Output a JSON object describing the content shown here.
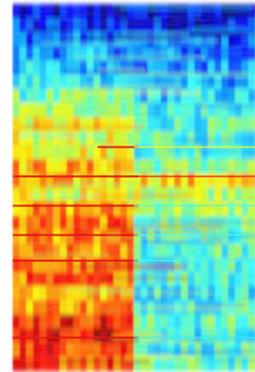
{
  "chart_data": {
    "type": "heatmap",
    "colormap": "jet",
    "colormap_stops": [
      "#00007f",
      "#0000ff",
      "#00a0ff",
      "#33ffff",
      "#a0ff60",
      "#ffff00",
      "#ff7f00",
      "#ff0000",
      "#7f0000"
    ],
    "frequency_bins_top_to_bottom": 26,
    "time_segments": 2,
    "segment_boundary_fraction": 0.5,
    "intensity_rows_top_to_bottom": [
      {
        "left": 0.08,
        "right": 0.08
      },
      {
        "left": 0.14,
        "right": 0.12
      },
      {
        "left": 0.22,
        "right": 0.18
      },
      {
        "left": 0.26,
        "right": 0.2
      },
      {
        "left": 0.3,
        "right": 0.24
      },
      {
        "left": 0.36,
        "right": 0.28
      },
      {
        "left": 0.44,
        "right": 0.32
      },
      {
        "left": 0.52,
        "right": 0.38
      },
      {
        "left": 0.6,
        "right": 0.4
      },
      {
        "left": 0.58,
        "right": 0.4
      },
      {
        "left": 0.62,
        "right": 0.42
      },
      {
        "left": 0.7,
        "right": 0.48
      },
      {
        "left": 0.68,
        "right": 0.66
      },
      {
        "left": 0.6,
        "right": 0.56
      },
      {
        "left": 0.72,
        "right": 0.52
      },
      {
        "left": 0.76,
        "right": 0.46
      },
      {
        "left": 0.74,
        "right": 0.4
      },
      {
        "left": 0.72,
        "right": 0.42
      },
      {
        "left": 0.74,
        "right": 0.38
      },
      {
        "left": 0.78,
        "right": 0.42
      },
      {
        "left": 0.7,
        "right": 0.36
      },
      {
        "left": 0.74,
        "right": 0.4
      },
      {
        "left": 0.86,
        "right": 0.42
      },
      {
        "left": 0.88,
        "right": 0.38
      },
      {
        "left": 0.84,
        "right": 0.4
      },
      {
        "left": 0.8,
        "right": 0.42
      }
    ],
    "hot_bands": [
      {
        "row_fraction": 0.39,
        "left_end_fraction": 0.35,
        "right_intensity": 0.62
      },
      {
        "row_fraction": 0.47,
        "left_end_fraction": 0.0,
        "right_intensity": 0.88
      },
      {
        "row_fraction": 0.55,
        "left_end_fraction": 0.0,
        "right_intensity": 0.4
      },
      {
        "row_fraction": 0.63,
        "left_end_fraction": 0.0,
        "right_intensity": 0.4
      },
      {
        "row_fraction": 0.7,
        "left_end_fraction": 0.0,
        "right_intensity": 0.38
      },
      {
        "row_fraction": 0.91,
        "left_end_fraction": 0.0,
        "right_intensity": 0.36
      }
    ],
    "title": "",
    "xlabel": "",
    "ylabel": ""
  }
}
